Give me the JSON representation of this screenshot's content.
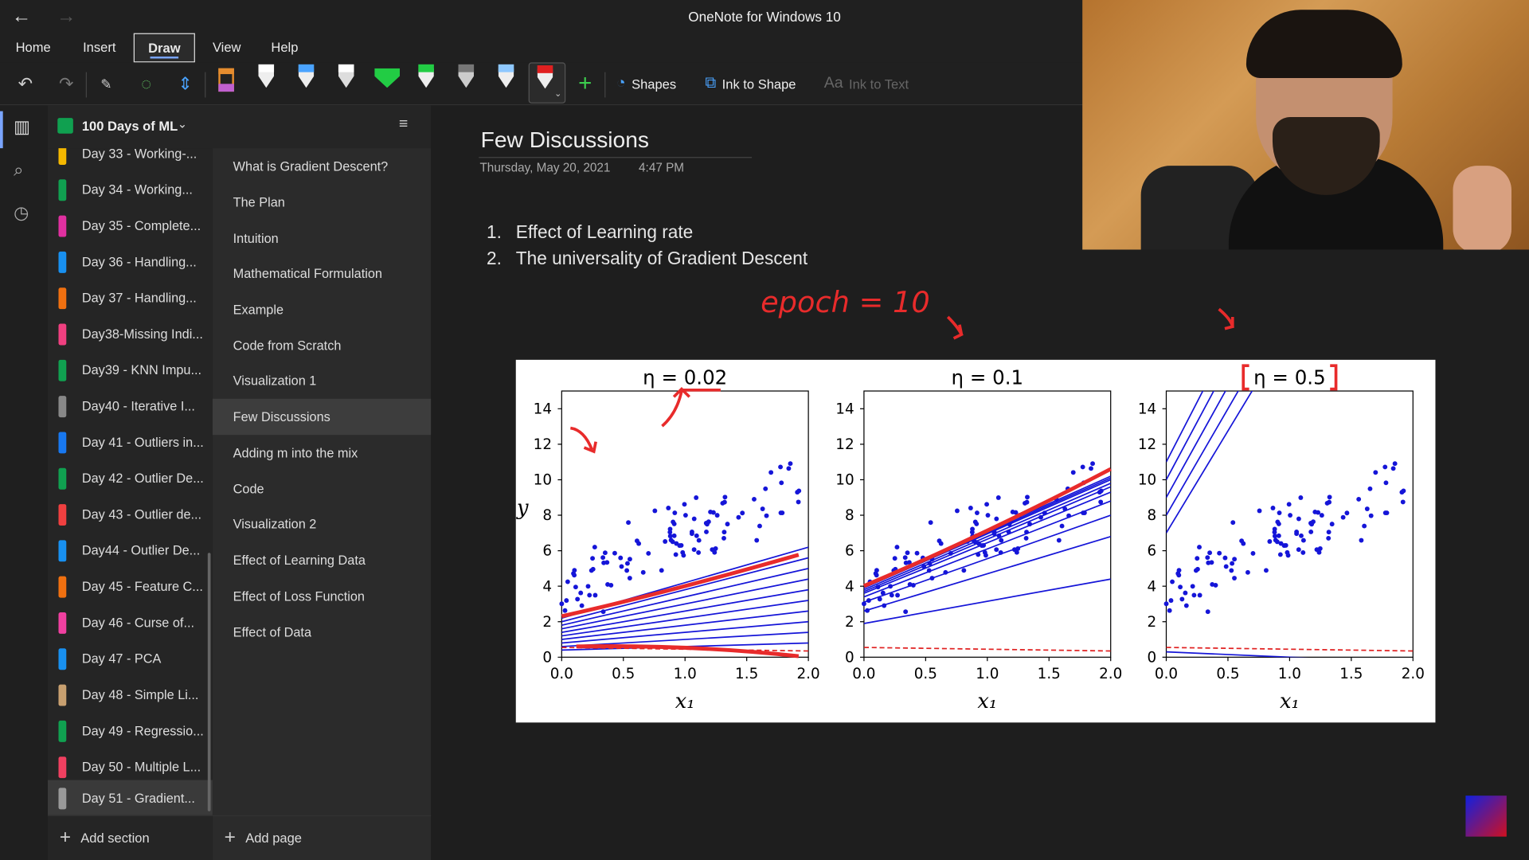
{
  "window": {
    "title": "OneNote for Windows 10",
    "back": "←",
    "forward": "→"
  },
  "menu": [
    "Home",
    "Insert",
    "Draw",
    "View",
    "Help"
  ],
  "ribbon": {
    "shapes": "Shapes",
    "ink_to_shape": "Ink to Shape",
    "ink_to_text": "Ink to Text"
  },
  "notebook": {
    "name": "100 Days of ML"
  },
  "sections": [
    {
      "label": "Day 33 - Working-...",
      "color": "#f5b800"
    },
    {
      "label": "Day 34 - Working...",
      "color": "#10a050"
    },
    {
      "label": "Day 35 - Complete...",
      "color": "#e030a0"
    },
    {
      "label": "Day 36 - Handling...",
      "color": "#1890f0"
    },
    {
      "label": "Day 37 - Handling...",
      "color": "#f07010"
    },
    {
      "label": "Day38-Missing Indi...",
      "color": "#f04080"
    },
    {
      "label": "Day39 - KNN Impu...",
      "color": "#10a050"
    },
    {
      "label": "Day40 - Iterative I...",
      "color": "#888888"
    },
    {
      "label": "Day 41 - Outliers in...",
      "color": "#1878f0"
    },
    {
      "label": "Day 42 - Outlier De...",
      "color": "#10a050"
    },
    {
      "label": "Day 43 - Outlier de...",
      "color": "#f04040"
    },
    {
      "label": "Day44 - Outlier De...",
      "color": "#1890f0"
    },
    {
      "label": "Day 45 - Feature C...",
      "color": "#f07010"
    },
    {
      "label": "Day 46 - Curse of...",
      "color": "#f040a0"
    },
    {
      "label": "Day 47 - PCA",
      "color": "#1890f0"
    },
    {
      "label": "Day 48 - Simple Li...",
      "color": "#c8a070"
    },
    {
      "label": "Day 49 - Regressio...",
      "color": "#10a050"
    },
    {
      "label": "Day 50 - Multiple L...",
      "color": "#f04060"
    },
    {
      "label": "Day 51 - Gradient...",
      "color": "#999999"
    }
  ],
  "pages": [
    "What is Gradient Descent?",
    "The Plan",
    "Intuition",
    "Mathematical Formulation",
    "Example",
    "Code from Scratch",
    "Visualization 1",
    "Few Discussions",
    "Adding m into the mix",
    "Code",
    "Visualization 2",
    "Effect of Learning Data",
    "Effect of Loss Function",
    "Effect of Data"
  ],
  "add_section": "Add section",
  "add_page": "Add page",
  "note": {
    "title": "Few Discussions",
    "date": "Thursday, May 20, 2021",
    "time": "4:47 PM",
    "items": [
      "Effect of Learning rate",
      "The universality of Gradient Descent"
    ],
    "ink_annotation": "epoch = 10"
  },
  "chart_data": [
    {
      "type": "line",
      "title": "η = 0.02",
      "xlabel": "x₁",
      "ylabel": "y",
      "xlim": [
        0,
        2
      ],
      "ylim": [
        0,
        15
      ],
      "xticks": [
        "0.0",
        "0.5",
        "1.0",
        "1.5",
        "2.0"
      ],
      "yticks": [
        "0",
        "2",
        "4",
        "6",
        "8",
        "10",
        "12",
        "14"
      ]
    },
    {
      "type": "line",
      "title": "η = 0.1",
      "xlabel": "x₁",
      "ylabel": "",
      "xlim": [
        0,
        2
      ],
      "ylim": [
        0,
        15
      ],
      "xticks": [
        "0.0",
        "0.5",
        "1.0",
        "1.5",
        "2.0"
      ],
      "yticks": [
        "0",
        "2",
        "4",
        "6",
        "8",
        "10",
        "12",
        "14"
      ]
    },
    {
      "type": "line",
      "title": "η = 0.5",
      "xlabel": "x₁",
      "ylabel": "",
      "xlim": [
        0,
        2
      ],
      "ylim": [
        0,
        15
      ],
      "xticks": [
        "0.0",
        "0.5",
        "1.0",
        "1.5",
        "2.0"
      ],
      "yticks": [
        "0",
        "2",
        "4",
        "6",
        "8",
        "10",
        "12",
        "14"
      ]
    }
  ]
}
